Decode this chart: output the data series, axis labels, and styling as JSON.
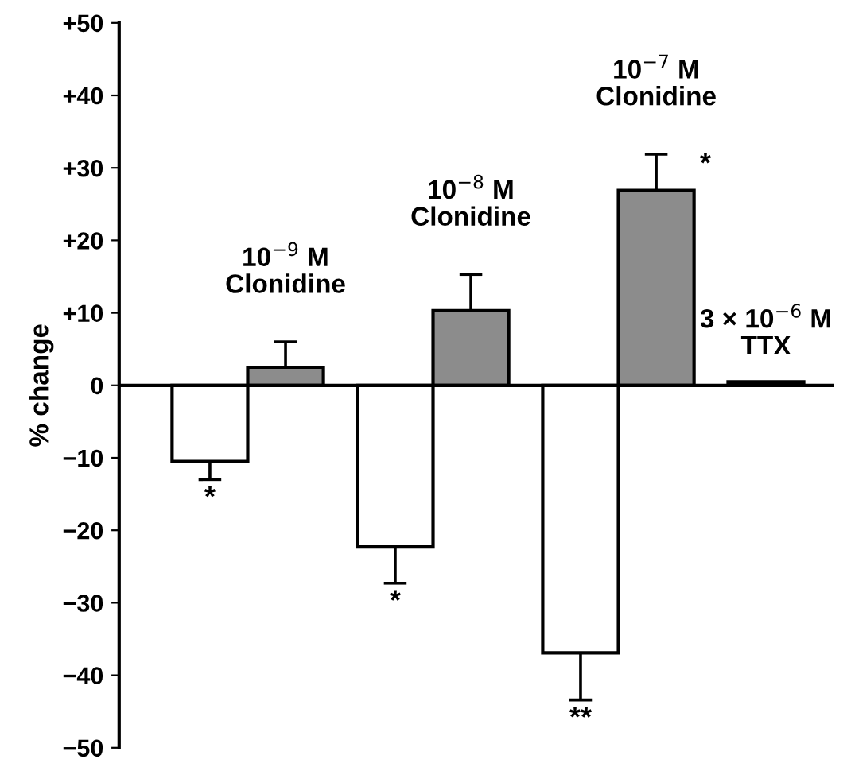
{
  "chart_data": {
    "type": "bar",
    "ylabel": "% change",
    "categories": [
      null,
      null,
      null,
      null,
      null,
      null,
      null
    ],
    "values": [
      -10.5,
      2.5,
      -22.3,
      10.3,
      -36.9,
      26.9,
      0.5
    ],
    "colors": [
      "#ffffff",
      "#8c8c8c",
      "#ffffff",
      "#8c8c8c",
      "#ffffff",
      "#8c8c8c",
      "#000000"
    ],
    "errors": [
      [
        -13,
        -10.5
      ],
      [
        2.5,
        6
      ],
      [
        -27.3,
        -22.3
      ],
      [
        10.3,
        15.3
      ],
      [
        -43.4,
        -36.9
      ],
      [
        26.9,
        31.9
      ],
      null
    ],
    "ylim": [
      -50,
      50
    ],
    "yticks": [
      {
        "value": -50,
        "label": "−50"
      },
      {
        "value": -40,
        "label": "−40"
      },
      {
        "value": -30,
        "label": "−30"
      },
      {
        "value": -20,
        "label": "−20"
      },
      {
        "value": -10,
        "label": "−10"
      },
      0,
      {
        "value": 10,
        "label": "+10"
      },
      {
        "value": 20,
        "label": "+20"
      },
      {
        "value": 30,
        "label": "+30"
      },
      {
        "value": 40,
        "label": "+40"
      },
      {
        "value": 50,
        "label": "+50"
      }
    ],
    "ref_lines": [
      {
        "axis": "y",
        "value": 0,
        "color": "#000000"
      }
    ],
    "annotations": [
      "10$^{−9}$ M\nClonidine",
      "10$^{−8}$ M\nClonidine",
      "10$^{−7}$ M\nClonidine",
      "3 × 10$^{−6}$ M\nTTX",
      "*",
      "*",
      "**",
      "*"
    ],
    "grid": false,
    "legend": false
  }
}
